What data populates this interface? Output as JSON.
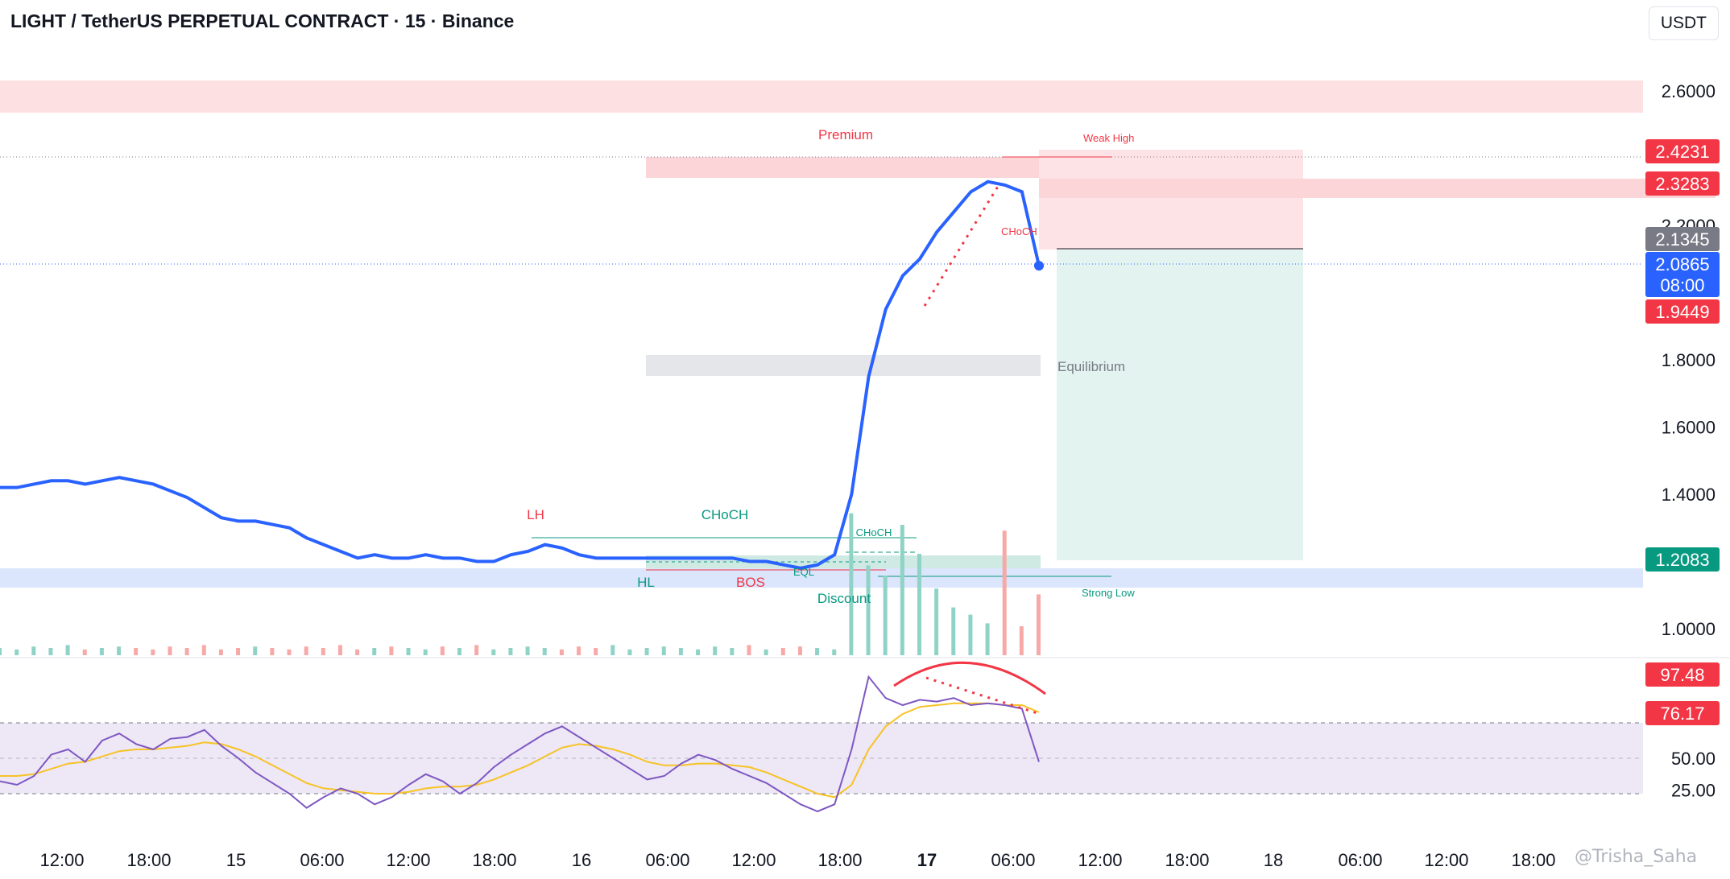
{
  "header": {
    "title": "LIGHT / TetherUS PERPETUAL CONTRACT · 15 · Binance",
    "currency": "USDT"
  },
  "watermark": "@Trisha_Saha",
  "colors": {
    "price_line": "#2962ff",
    "bull": "#26a69a",
    "bear": "#ef5350",
    "rsi_line": "#7e57c2",
    "rsi_ma": "#f7c325",
    "premium_zone": "#fbd5d8",
    "discount_zone": "#dbe5fb",
    "equilibrium_zone": "#e5e6e9",
    "target_zone": "#e2f3f0"
  },
  "chart_data": {
    "type": "line",
    "symbol": "LIGHT/USDT",
    "interval": "15",
    "x_ticks": [
      "12:00",
      "18:00",
      "15",
      "06:00",
      "12:00",
      "18:00",
      "16",
      "06:00",
      "12:00",
      "18:00",
      "17",
      "06:00",
      "12:00",
      "18:00",
      "18",
      "06:00",
      "12:00",
      "18:00"
    ],
    "y_ticks": [
      "2.6000",
      "2.2000",
      "1.8000",
      "1.6000",
      "1.4000",
      "1.0000"
    ],
    "ylim": [
      0.92,
      2.64
    ],
    "series": [
      {
        "values": [
          1.42,
          1.42,
          1.43,
          1.44,
          1.44,
          1.43,
          1.44,
          1.45,
          1.44,
          1.43,
          1.41,
          1.39,
          1.36,
          1.33,
          1.32,
          1.32,
          1.31,
          1.3,
          1.27,
          1.25,
          1.23,
          1.21,
          1.22,
          1.21,
          1.21,
          1.22,
          1.21,
          1.21,
          1.2,
          1.2,
          1.22,
          1.23,
          1.25,
          1.24,
          1.22,
          1.21,
          1.21,
          1.21,
          1.21,
          1.21,
          1.21,
          1.21,
          1.21,
          1.21,
          1.2,
          1.2,
          1.19,
          1.18,
          1.19,
          1.22,
          1.4,
          1.75,
          1.95,
          2.05,
          2.1,
          2.18,
          2.24,
          2.3,
          2.33,
          2.32,
          2.3,
          2.08
        ]
      }
    ],
    "current_price": "2.0865",
    "countdown": "08:00",
    "price_labels": [
      {
        "value": "2.4231",
        "color": "#f23645"
      },
      {
        "value": "2.3283",
        "color": "#f23645"
      },
      {
        "value": "2.1345",
        "color": "#787b86"
      },
      {
        "value": "1.9449",
        "color": "#f23645"
      },
      {
        "value": "1.2083",
        "color": "#089981"
      }
    ],
    "annotations": [
      {
        "text": "Premium",
        "color": "#f23645"
      },
      {
        "text": "Weak High",
        "color": "#f23645"
      },
      {
        "text": "CHoCH",
        "color": "#f23645"
      },
      {
        "text": "Equilibrium",
        "color": "#787b86"
      },
      {
        "text": "LH",
        "color": "#f23645"
      },
      {
        "text": "CHoCH",
        "color": "#089981"
      },
      {
        "text": "CHoCH",
        "color": "#089981"
      },
      {
        "text": "EQL",
        "color": "#089981"
      },
      {
        "text": "HL",
        "color": "#089981"
      },
      {
        "text": "BOS",
        "color": "#f23645"
      },
      {
        "text": "Discount",
        "color": "#089981"
      },
      {
        "text": "Strong Low",
        "color": "#089981"
      }
    ],
    "volume": [
      0.05,
      0.04,
      0.06,
      0.05,
      0.07,
      0.04,
      0.05,
      0.06,
      0.05,
      0.04,
      0.06,
      0.05,
      0.07,
      0.04,
      0.05,
      0.06,
      0.05,
      0.04,
      0.06,
      0.05,
      0.07,
      0.04,
      0.05,
      0.06,
      0.05,
      0.04,
      0.06,
      0.05,
      0.07,
      0.04,
      0.05,
      0.06,
      0.05,
      0.04,
      0.06,
      0.05,
      0.07,
      0.04,
      0.05,
      0.06,
      0.05,
      0.04,
      0.06,
      0.05,
      0.07,
      0.04,
      0.05,
      0.06,
      0.05,
      0.04,
      0.98,
      0.62,
      0.55,
      0.9,
      0.7,
      0.46,
      0.33,
      0.28,
      0.22,
      0.86,
      0.2,
      0.42
    ]
  },
  "rsi": {
    "y_ticks": [
      "50.00",
      "25.00"
    ],
    "labels": [
      {
        "value": "97.48",
        "color": "#f23645"
      },
      {
        "value": "76.17",
        "color": "#f23645"
      }
    ],
    "values": [
      37,
      35,
      40,
      52,
      55,
      48,
      60,
      64,
      58,
      55,
      61,
      62,
      66,
      57,
      50,
      42,
      36,
      30,
      22,
      28,
      33,
      30,
      24,
      28,
      35,
      41,
      37,
      30,
      36,
      45,
      52,
      58,
      64,
      68,
      62,
      56,
      50,
      44,
      38,
      40,
      47,
      52,
      49,
      44,
      40,
      36,
      30,
      24,
      20,
      24,
      55,
      96,
      84,
      80,
      83,
      82,
      84,
      80,
      81,
      80,
      78,
      48
    ],
    "ma": [
      40,
      40,
      41,
      44,
      47,
      48,
      51,
      54,
      55,
      55,
      56,
      57,
      59,
      58,
      55,
      51,
      46,
      41,
      36,
      33,
      32,
      31,
      30,
      30,
      31,
      33,
      34,
      34,
      35,
      38,
      42,
      46,
      51,
      56,
      58,
      57,
      55,
      52,
      48,
      46,
      46,
      47,
      47,
      46,
      45,
      42,
      38,
      34,
      30,
      28,
      35,
      55,
      68,
      75,
      79,
      80,
      81,
      81,
      81,
      80,
      80,
      76
    ]
  }
}
